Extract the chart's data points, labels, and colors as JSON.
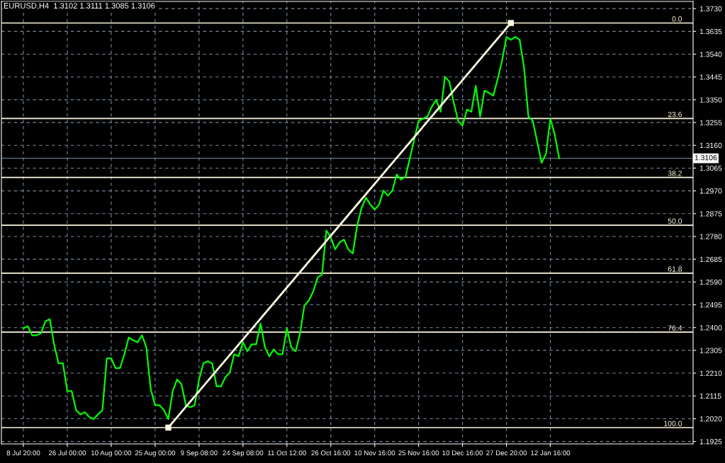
{
  "chart_data": {
    "type": "line",
    "title": "EURUSD,H4  1.3102 1.3111 1.3085 1.3106",
    "categories": [
      "8 Jul 20:00",
      null,
      null,
      null,
      null,
      null,
      null,
      null,
      null,
      null,
      "26 Jul 00:00",
      null,
      null,
      null,
      null,
      null,
      null,
      null,
      null,
      null,
      "10 Aug 00:00",
      null,
      null,
      null,
      null,
      null,
      null,
      null,
      null,
      null,
      "25 Aug 00:00",
      null,
      null,
      null,
      null,
      null,
      null,
      null,
      null,
      null,
      "9 Sep 08:00",
      null,
      null,
      null,
      null,
      null,
      null,
      null,
      null,
      null,
      "24 Sep 08:00",
      null,
      null,
      null,
      null,
      null,
      null,
      null,
      null,
      null,
      "11 Oct 12:00",
      null,
      null,
      null,
      null,
      null,
      null,
      null,
      null,
      null,
      "26 Oct 16:00",
      null,
      null,
      null,
      null,
      null,
      null,
      null,
      null,
      null,
      "10 Nov 16:00",
      null,
      null,
      null,
      null,
      null,
      null,
      null,
      null,
      null,
      "25 Nov 16:00",
      null,
      null,
      null,
      null,
      null,
      null,
      null,
      null,
      null,
      "10 Dec 16:00",
      null,
      null,
      null,
      null,
      null,
      null,
      null,
      null,
      null,
      "27 Dec 20:00",
      null,
      null,
      null,
      null,
      null,
      null,
      null,
      null,
      null,
      "12 Jan 16:00",
      null,
      null,
      null,
      null,
      null,
      null,
      null,
      null,
      null,
      null,
      null,
      null,
      null,
      null,
      null,
      null,
      null,
      null,
      null,
      null,
      null,
      null,
      null,
      null,
      null,
      null,
      null,
      null,
      null,
      null,
      null,
      null
    ],
    "series": [
      {
        "color": "#00ff00",
        "values": [
          1.2397,
          1.2406,
          1.2368,
          1.2368,
          1.2376,
          1.2426,
          1.2435,
          1.233,
          1.2251,
          1.2251,
          1.2135,
          1.2135,
          1.2056,
          1.2038,
          1.2047,
          1.2027,
          1.2018,
          1.2038,
          1.2056,
          1.2272,
          1.2272,
          1.2231,
          1.2231,
          1.2289,
          1.2359,
          1.2347,
          1.2339,
          1.2368,
          1.2318,
          1.2143,
          1.2076,
          1.2076,
          1.2056,
          1.2018,
          1.2135,
          1.2184,
          1.2164,
          1.2076,
          1.2068,
          1.2076,
          1.2184,
          1.2251,
          1.226,
          1.2251,
          1.2155,
          1.2155,
          1.2193,
          1.2213,
          1.2289,
          1.228,
          1.2339,
          1.2301,
          1.233,
          1.233,
          1.2417,
          1.2318,
          1.228,
          1.2309,
          1.2289,
          1.2289,
          1.2397,
          1.2318,
          1.2301,
          1.2376,
          1.2493,
          1.2513,
          1.2551,
          1.2609,
          1.2621,
          1.2805,
          1.2776,
          1.2726,
          1.2755,
          1.2767,
          1.2726,
          1.2709,
          1.2825,
          1.2898,
          1.2942,
          1.2913,
          1.2892,
          1.2913,
          1.2971,
          1.295,
          1.2971,
          1.3038,
          1.3017,
          1.3029,
          1.3105,
          1.3184,
          1.3262,
          1.3271,
          1.328,
          1.3321,
          1.335,
          1.33,
          1.3446,
          1.3425,
          1.3338,
          1.3262,
          1.3242,
          1.3309,
          1.33,
          1.3408,
          1.328,
          1.3388,
          1.3379,
          1.3367,
          1.3437,
          1.3513,
          1.3612,
          1.36,
          1.3612,
          1.36,
          1.3484,
          1.328,
          1.3262,
          1.3175,
          1.3087,
          1.3125,
          1.3271,
          1.3204,
          1.3106,
          null,
          null,
          null,
          null,
          null,
          null,
          null,
          null,
          null,
          null,
          null,
          null,
          null,
          null,
          null,
          null,
          null,
          null,
          null,
          null,
          null,
          null,
          null,
          null,
          null,
          null,
          null,
          null,
          null,
          null
        ]
      },
      {
        "color": "#fffae0",
        "marker": "square",
        "values": [
          null,
          null,
          null,
          null,
          null,
          null,
          null,
          null,
          null,
          null,
          null,
          null,
          null,
          null,
          null,
          null,
          null,
          null,
          null,
          null,
          null,
          null,
          null,
          null,
          null,
          null,
          null,
          null,
          null,
          null,
          null,
          null,
          null,
          1.1983,
          null,
          null,
          null,
          null,
          null,
          null,
          null,
          null,
          null,
          null,
          null,
          null,
          null,
          null,
          null,
          null,
          null,
          null,
          null,
          null,
          null,
          null,
          null,
          null,
          null,
          null,
          null,
          null,
          null,
          null,
          null,
          null,
          null,
          null,
          null,
          null,
          null,
          null,
          null,
          null,
          null,
          null,
          null,
          null,
          null,
          null,
          null,
          null,
          null,
          null,
          null,
          null,
          null,
          null,
          null,
          null,
          null,
          null,
          null,
          null,
          null,
          null,
          null,
          null,
          null,
          null,
          null,
          null,
          null,
          null,
          null,
          null,
          null,
          null,
          null,
          null,
          null,
          1.367,
          null,
          null,
          null,
          null,
          null,
          null,
          null,
          null,
          null,
          null,
          null,
          null,
          null,
          null,
          null,
          null,
          null,
          null,
          null,
          null,
          null,
          null,
          null,
          null,
          null,
          null,
          null,
          null,
          null,
          null,
          null,
          null,
          null,
          null,
          null,
          null,
          null,
          null,
          null,
          null,
          null
        ]
      }
    ],
    "ylim": [
      1.1915,
      1.376
    ],
    "yticks": [
      1.1925,
      {
        "value": 1.202,
        "label": "1.2020"
      },
      1.2115,
      {
        "value": 1.221,
        "label": "1.2210"
      },
      1.2305,
      {
        "value": 1.24,
        "label": "1.2400"
      },
      1.2495,
      {
        "value": 1.259,
        "label": "1.2590"
      },
      1.2685,
      {
        "value": 1.278,
        "label": "1.2780"
      },
      1.2875,
      {
        "value": 1.297,
        "label": "1.2970"
      },
      1.3065,
      {
        "value": 1.316,
        "label": "1.3160"
      },
      1.3255,
      {
        "value": 1.335,
        "label": "1.3350"
      },
      1.3445,
      {
        "value": 1.354,
        "label": "1.3540"
      },
      1.3635,
      {
        "value": 1.373,
        "label": "1.3730"
      }
    ],
    "ref_lines": [
      {
        "axis": "y",
        "value": 1.367,
        "color": "#fffae0"
      },
      {
        "axis": "y",
        "value": 1.3272,
        "color": "#fffae0"
      },
      {
        "axis": "y",
        "value": 1.3026,
        "color": "#fffae0"
      },
      {
        "axis": "y",
        "value": 1.2827,
        "color": "#fffae0"
      },
      {
        "axis": "y",
        "value": 1.2627,
        "color": "#fffae0"
      },
      {
        "axis": "y",
        "value": 1.2381,
        "color": "#fffae0"
      },
      {
        "axis": "y",
        "value": 1.1983,
        "color": "#fffae0"
      },
      {
        "axis": "y",
        "value": 1.3106,
        "label": "1.3106",
        "color": "#778899"
      }
    ],
    "annotations": [
      {
        "text": "0.0",
        "y": 1.367
      },
      {
        "text": "23.6",
        "y": 1.3272
      },
      {
        "text": "38.2",
        "y": 1.3026
      },
      {
        "text": "50.0",
        "y": 1.2827
      },
      {
        "text": "61.8",
        "y": 1.2627
      },
      {
        "text": "76.4",
        "y": 1.2381
      },
      {
        "text": "100.0",
        "y": 1.1983
      }
    ],
    "grid": true,
    "line_style": "solid",
    "marker": "none"
  }
}
